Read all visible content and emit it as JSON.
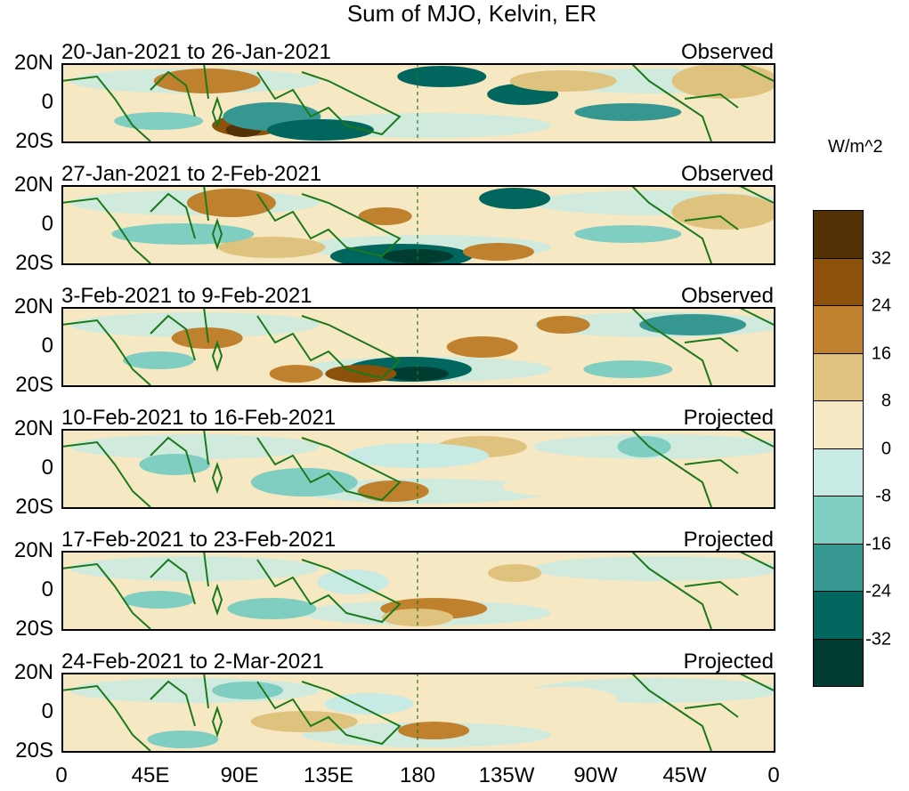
{
  "title": "Sum of MJO, Kelvin, ER",
  "panels": [
    {
      "dates": "20-Jan-2021 to 26-Jan-2021",
      "status": "Observed"
    },
    {
      "dates": "27-Jan-2021 to 2-Feb-2021",
      "status": "Observed"
    },
    {
      "dates": "3-Feb-2021 to 9-Feb-2021",
      "status": "Observed"
    },
    {
      "dates": "10-Feb-2021 to 16-Feb-2021",
      "status": "Projected"
    },
    {
      "dates": "17-Feb-2021 to 23-Feb-2021",
      "status": "Projected"
    },
    {
      "dates": "24-Feb-2021 to 2-Mar-2021",
      "status": "Projected"
    }
  ],
  "lat_labels": [
    "20N",
    "0",
    "20S"
  ],
  "lon_labels": [
    "0",
    "45E",
    "90E",
    "135E",
    "180",
    "135W",
    "90W",
    "45W",
    "0"
  ],
  "colorbar": {
    "units": "W/m^2",
    "tick_labels": [
      "32",
      "24",
      "16",
      "8",
      "0",
      "-8",
      "-16",
      "-24",
      "-32"
    ],
    "colors": [
      "#543005",
      "#8c510a",
      "#bf812d",
      "#dfc27d",
      "#f6e8c3",
      "#c7eae5",
      "#80cdc1",
      "#35978f",
      "#01665e",
      "#003c30"
    ]
  }
}
